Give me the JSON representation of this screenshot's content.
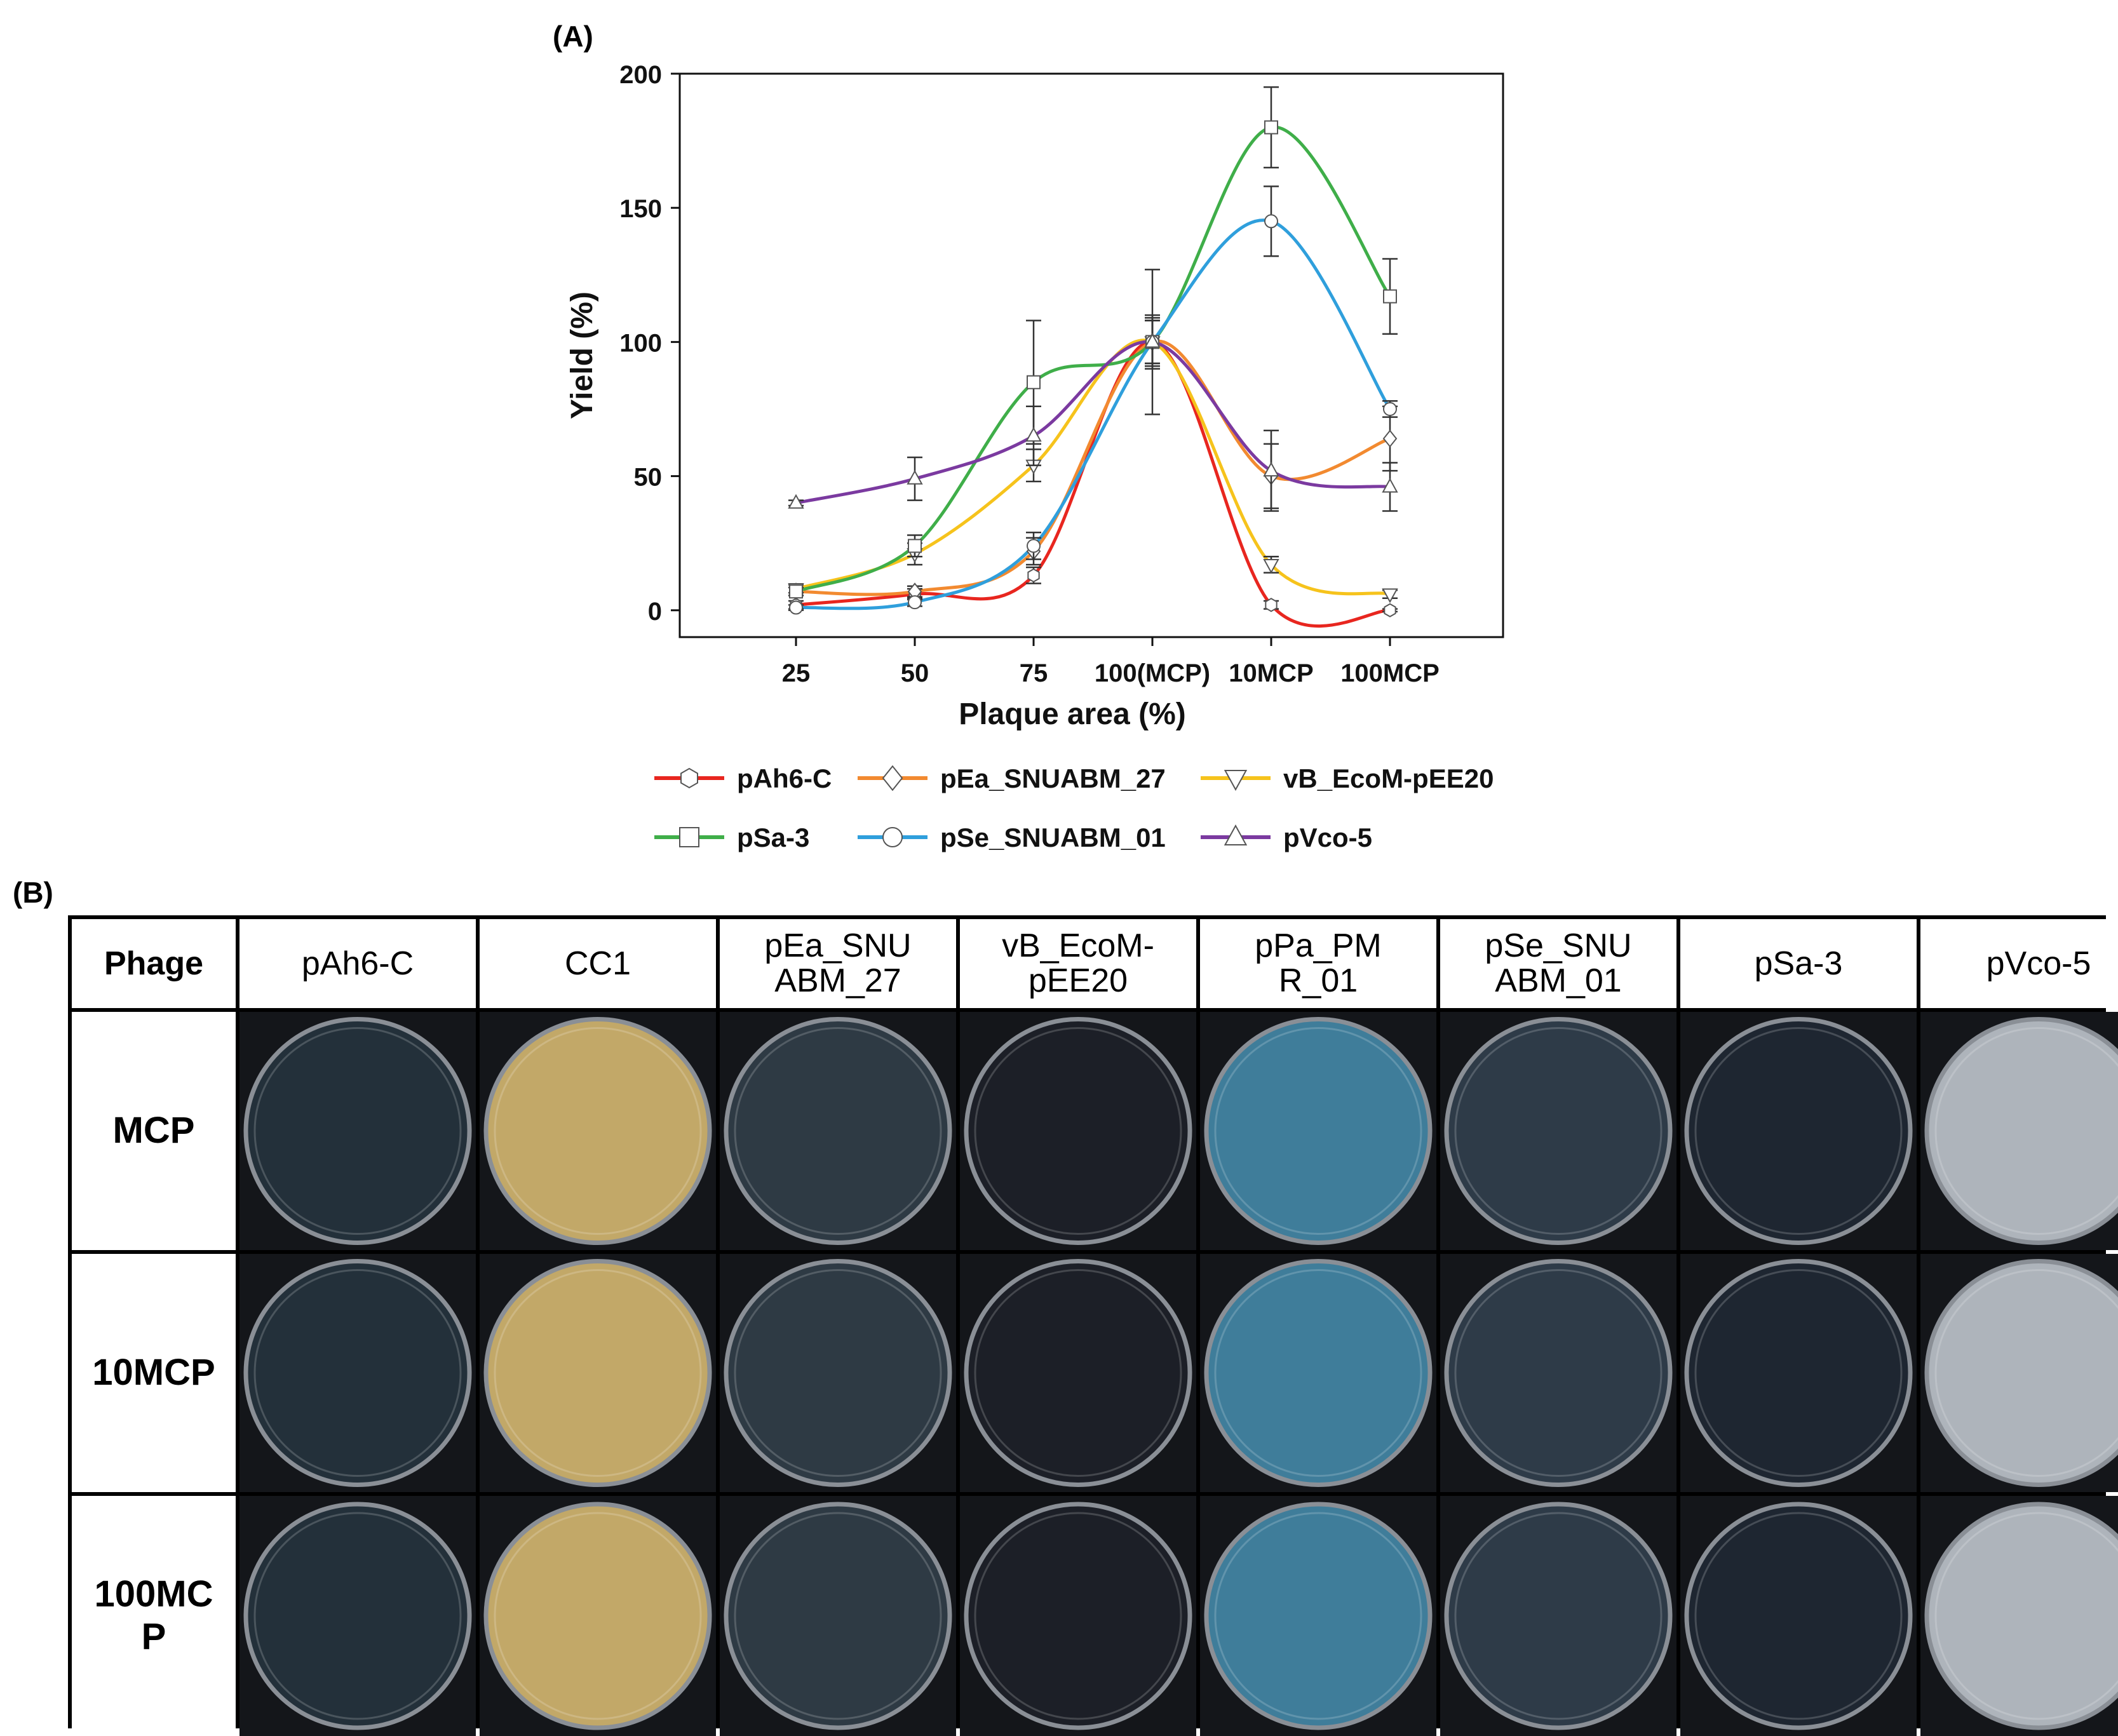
{
  "panel_labels": {
    "a": "(A)",
    "b": "(B)"
  },
  "chart_data": {
    "type": "line",
    "title": "",
    "xlabel": "Plaque area (%)",
    "ylabel": "Yield (%)",
    "categories": [
      "25",
      "50",
      "75",
      "100(MCP)",
      "10MCP",
      "100MCP"
    ],
    "ylim": [
      -10,
      200
    ],
    "yticks": [
      0,
      50,
      100,
      150,
      200
    ],
    "grid": false,
    "legend_position": "bottom",
    "series": [
      {
        "name": "pAh6-C",
        "color": "#e8261f",
        "marker": "hexagon",
        "values": [
          2,
          6,
          13,
          100,
          2,
          0
        ],
        "errors": [
          1.5,
          2,
          3,
          10,
          1.5,
          0.5
        ]
      },
      {
        "name": "pEa_SNUABM_27",
        "color": "#f28a30",
        "marker": "diamond",
        "values": [
          7,
          7,
          22,
          100,
          50,
          64
        ],
        "errors": [
          1.5,
          2,
          5,
          8,
          12,
          12
        ]
      },
      {
        "name": "vB_EcoM-pEE20",
        "color": "#f6c31c",
        "marker": "triangle-down",
        "values": [
          8,
          21,
          54,
          100,
          17,
          6
        ],
        "errors": [
          1.5,
          4,
          6,
          9,
          3,
          1.5
        ]
      },
      {
        "name": "pSa-3",
        "color": "#3fae49",
        "marker": "square",
        "values": [
          7,
          24,
          85,
          100,
          180,
          117
        ],
        "errors": [
          1.5,
          4,
          23,
          8,
          15,
          14
        ]
      },
      {
        "name": "pSe_SNUABM_01",
        "color": "#2f9fdc",
        "marker": "circle",
        "values": [
          1,
          3,
          24,
          100,
          145,
          75
        ],
        "errors": [
          1,
          1.5,
          5,
          8,
          13,
          3
        ]
      },
      {
        "name": "pVco-5",
        "color": "#7b3aa0",
        "marker": "triangle-up",
        "values": [
          40,
          49,
          65,
          100,
          52,
          46
        ],
        "errors": [
          1,
          8,
          11,
          27,
          15,
          9
        ]
      }
    ]
  },
  "plate_table": {
    "corner_label": "Phage",
    "columns": [
      "pAh6-C",
      "CC1",
      "pEa_SNU ABM_27",
      "vB_EcoM- pEE20",
      "pPa_PM R_01",
      "pSe_SNU ABM_01",
      "pSa-3",
      "pVco-5"
    ],
    "rows": [
      "MCP",
      "10MCP",
      "100MC P"
    ],
    "plate_colors": [
      "#23303a",
      "#c2a868",
      "#2e3a44",
      "#1c1f27",
      "#3f7d9a",
      "#2e3b48",
      "#1e2631",
      "#aeb4bb"
    ]
  }
}
